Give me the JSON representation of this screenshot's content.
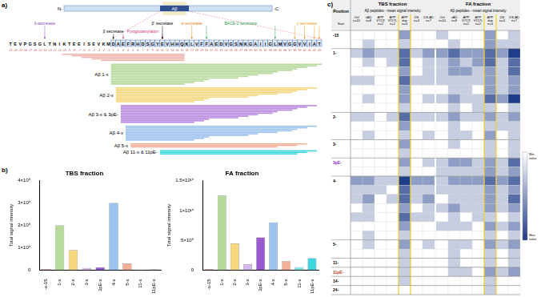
{
  "panel_labels": [
    "a)",
    "b)",
    "c)"
  ],
  "diagram": {
    "protein": {
      "n_label": "N-",
      "c_label": "-C",
      "domain_label": "Aβ"
    },
    "sequence": [
      "T",
      "E",
      "V",
      "P",
      "G",
      "S",
      "G",
      "L",
      "T",
      "N",
      "I",
      "K",
      "T",
      "E",
      "E",
      "I",
      "S",
      "E",
      "V",
      "K",
      "M",
      "D",
      "A",
      "E",
      "F",
      "R",
      "H",
      "D",
      "S",
      "G",
      "Y",
      "E",
      "V",
      "H",
      "H",
      "Q",
      "K",
      "L",
      "V",
      "F",
      "F",
      "A",
      "E",
      "D",
      "V",
      "G",
      "S",
      "N",
      "K",
      "G",
      "A",
      "I",
      "I",
      "G",
      "L",
      "M",
      "V",
      "G",
      "G",
      "V",
      "V",
      "I",
      "A",
      "T"
    ],
    "positions": [
      -21,
      -20,
      -19,
      -18,
      -17,
      -16,
      -15,
      -14,
      -13,
      -12,
      -11,
      -10,
      -9,
      -8,
      -7,
      -6,
      -5,
      -4,
      -3,
      -2,
      -1,
      1,
      2,
      3,
      4,
      5,
      6,
      7,
      8,
      9,
      10,
      11,
      12,
      13,
      14,
      15,
      16,
      17,
      18,
      19,
      20,
      21,
      22,
      23,
      24,
      25,
      26,
      27,
      28,
      29,
      30,
      31,
      32,
      33,
      34,
      35,
      36,
      37,
      38,
      39,
      40,
      41,
      42,
      43
    ],
    "annotations": [
      {
        "text": "δ-secretase",
        "color": "#8e44ad",
        "at": [
          -14
        ]
      },
      {
        "text": "β secretase",
        "color": "#000000",
        "at": [
          1
        ]
      },
      {
        "text": "Pyroglutamylation",
        "color": "#d63384",
        "at": [
          3,
          11
        ]
      },
      {
        "text": "β' secretase",
        "color": "#000000",
        "at": [
          11
        ]
      },
      {
        "text": "α-secretase",
        "color": "#e67e22",
        "at": [
          17
        ]
      },
      {
        "text": "BACE 2 secretase",
        "color": "#2e9e4f",
        "at": [
          20,
          34
        ]
      },
      {
        "text": "γ secretase",
        "color": "#e69b1e",
        "at": [
          38,
          40,
          42,
          43
        ]
      }
    ],
    "groups": [
      {
        "color": "#f4b6b0",
        "bars": [
          [
            -10,
            15
          ],
          [
            -8,
            15
          ],
          [
            -6,
            15
          ],
          [
            -4,
            15
          ],
          [
            -2,
            15
          ]
        ]
      },
      {
        "label": "Aβ 1-x",
        "color": "#b7d99c",
        "bars": [
          [
            1,
            43
          ],
          [
            1,
            42
          ],
          [
            1,
            40
          ],
          [
            1,
            38
          ],
          [
            1,
            37
          ],
          [
            1,
            34
          ],
          [
            1,
            33
          ],
          [
            1,
            30
          ],
          [
            1,
            28
          ],
          [
            1,
            26
          ],
          [
            1,
            20
          ],
          [
            1,
            19
          ],
          [
            1,
            17
          ],
          [
            1,
            15
          ]
        ]
      },
      {
        "label": "Aβ 2-x",
        "color": "#f6d77e",
        "bars": [
          [
            2,
            42
          ],
          [
            2,
            40
          ],
          [
            2,
            38
          ],
          [
            2,
            37
          ],
          [
            2,
            34
          ],
          [
            2,
            30
          ],
          [
            2,
            28
          ],
          [
            2,
            20
          ],
          [
            2,
            19
          ],
          [
            2,
            17
          ]
        ]
      },
      {
        "label": "Aβ 3-x & 3pE-",
        "color": "#b98ae0",
        "bars": [
          [
            3,
            42
          ],
          [
            3,
            40
          ],
          [
            3,
            38
          ],
          [
            3,
            37
          ],
          [
            3,
            34
          ],
          [
            3,
            33
          ],
          [
            3,
            30
          ],
          [
            3,
            28
          ],
          [
            3,
            26
          ],
          [
            3,
            20
          ],
          [
            3,
            19
          ],
          [
            3,
            17
          ]
        ]
      },
      {
        "label": "Aβ 4-x",
        "color": "#9cc2ee",
        "bars": [
          [
            4,
            42
          ],
          [
            4,
            40
          ],
          [
            4,
            38
          ],
          [
            4,
            37
          ],
          [
            4,
            34
          ],
          [
            4,
            30
          ],
          [
            4,
            28
          ],
          [
            4,
            20
          ],
          [
            4,
            19
          ],
          [
            4,
            17
          ]
        ]
      },
      {
        "label": "Aβ 5-x",
        "color": "#f3b096",
        "bars": [
          [
            5,
            40
          ],
          [
            5,
            38
          ],
          [
            5,
            34
          ]
        ]
      },
      {
        "label": "Aβ 11-x & 11pE-",
        "color": "#3dd6de",
        "bars": [
          [
            11,
            42
          ],
          [
            11,
            40
          ],
          [
            11,
            38
          ]
        ]
      }
    ]
  },
  "chart_data": [
    {
      "type": "bar",
      "title": "TBS fraction",
      "y_label": "Total signal intensity",
      "categories": [
        "-x-15",
        "1-x",
        "2-x",
        "3-x",
        "3pE-x",
        "4-x",
        "5-x",
        "11-x",
        "11pE-x"
      ],
      "values": [
        50000000,
        2000000000,
        900000000,
        100000000,
        120000000,
        3000000000,
        300000000,
        20000000,
        30000000
      ],
      "colors": [
        "#f4b6b0",
        "#b7d99c",
        "#f6d77e",
        "#d6b8ef",
        "#9b59d0",
        "#9cc2ee",
        "#f3b096",
        "#7fe3e8",
        "#3dd6de"
      ],
      "ylim": [
        0,
        4000000000
      ],
      "yticks": [
        0,
        {
          "value": 1000000000,
          "label": "1×10⁹"
        },
        {
          "value": 2000000000,
          "label": "2×10⁹"
        },
        {
          "value": 3000000000,
          "label": "3×10⁹"
        },
        {
          "value": 4000000000,
          "label": "4×10⁹"
        }
      ],
      "grid": false
    },
    {
      "type": "bar",
      "title": "FA fraction",
      "y_label": "Total signal intensity",
      "categories": [
        "-x-15",
        "1-x",
        "2-x",
        "3-x",
        "3pE-x",
        "4-x",
        "5-x",
        "11-x",
        "11pE-x"
      ],
      "values": [
        200000000,
        12500000000,
        4500000000,
        1000000000,
        5500000000,
        8000000000,
        1500000000,
        500000000,
        2000000000
      ],
      "colors": [
        "#f4b6b0",
        "#b7d99c",
        "#f6d77e",
        "#d6b8ef",
        "#9b59d0",
        "#9cc2ee",
        "#f3b096",
        "#7fe3e8",
        "#3dd6de"
      ],
      "ylim": [
        0,
        15000000000
      ],
      "yticks": [
        0,
        {
          "value": 5000000000,
          "label": "5×10⁹"
        },
        {
          "value": 10000000000,
          "label": "1×10¹⁰"
        },
        {
          "value": 15000000000,
          "label": "1.5×10¹⁰"
        }
      ],
      "grid": false
    }
  ],
  "table": {
    "position_header": "Position",
    "start_header": "Start",
    "subtitle": "Aβ peptides - mean signal intensity",
    "fractions": [
      "TBS fraction",
      "FA fraction"
    ],
    "columns": [
      "Ctrl n=10",
      "sAD n=8",
      "APP V717I n=2",
      "APP V717L n=2",
      "APP dup n=4",
      "DS n=4",
      "DS-AD n=7"
    ],
    "highlight": {
      "column": 4,
      "color": "#f2cf2e"
    },
    "color_scale": {
      "min": 0,
      "max": 4,
      "min_label": "Min. value",
      "max_label": "Max. value",
      "min_color": "#ffffff",
      "max_color": "#1f3c88"
    },
    "groups": [
      {
        "label": "-15",
        "tbs": [
          [
            0,
            0,
            0,
            0,
            2,
            0,
            0
          ],
          [
            0,
            1,
            0,
            0,
            1,
            0,
            0
          ]
        ],
        "fa": [
          [
            1,
            0,
            0,
            0,
            2,
            0,
            1
          ],
          [
            0,
            1,
            0,
            0,
            2,
            1,
            1
          ]
        ]
      },
      {
        "label": "1-",
        "tbs": [
          [
            1,
            2,
            1,
            1,
            3,
            1,
            2
          ],
          [
            0,
            1,
            0,
            1,
            3,
            0,
            1
          ],
          [
            0,
            0,
            0,
            0,
            2,
            0,
            1
          ],
          [
            1,
            1,
            0,
            0,
            3,
            1,
            1
          ],
          [
            0,
            0,
            0,
            0,
            2,
            0,
            0
          ],
          [
            0,
            1,
            0,
            0,
            2,
            0,
            1
          ],
          [
            0,
            0,
            0,
            0,
            1,
            0,
            0
          ]
        ],
        "fa": [
          [
            2,
            3,
            2,
            2,
            3,
            2,
            4
          ],
          [
            1,
            2,
            1,
            2,
            3,
            1,
            3
          ],
          [
            1,
            2,
            2,
            1,
            2,
            1,
            3
          ],
          [
            1,
            1,
            1,
            1,
            2,
            1,
            2
          ],
          [
            0,
            1,
            1,
            0,
            2,
            1,
            2
          ],
          [
            1,
            2,
            1,
            1,
            3,
            2,
            4
          ],
          [
            0,
            1,
            0,
            1,
            1,
            0,
            1
          ]
        ]
      },
      {
        "label": "2-",
        "tbs": [
          [
            1,
            1,
            0,
            1,
            3,
            1,
            1
          ],
          [
            0,
            0,
            0,
            0,
            2,
            0,
            0
          ],
          [
            0,
            1,
            0,
            0,
            1,
            0,
            1
          ]
        ],
        "fa": [
          [
            1,
            2,
            1,
            1,
            2,
            1,
            2
          ],
          [
            0,
            1,
            0,
            0,
            1,
            1,
            1
          ],
          [
            0,
            1,
            1,
            0,
            2,
            0,
            1
          ]
        ]
      },
      {
        "label": "3-",
        "tbs": [
          [
            0,
            0,
            0,
            0,
            2,
            0,
            0
          ],
          [
            0,
            0,
            0,
            0,
            1,
            0,
            0
          ]
        ],
        "fa": [
          [
            0,
            1,
            0,
            0,
            1,
            0,
            1
          ],
          [
            0,
            0,
            0,
            0,
            1,
            0,
            1
          ]
        ]
      },
      {
        "label": "3pE-",
        "color": "#8e2fbf",
        "tbs": [
          [
            0,
            0,
            0,
            0,
            2,
            0,
            1
          ],
          [
            0,
            0,
            0,
            0,
            1,
            0,
            0
          ]
        ],
        "fa": [
          [
            1,
            2,
            2,
            1,
            2,
            1,
            3
          ],
          [
            1,
            1,
            1,
            1,
            2,
            1,
            2
          ]
        ]
      },
      {
        "label": "4-",
        "tbs": [
          [
            2,
            2,
            1,
            1,
            4,
            2,
            2
          ],
          [
            1,
            1,
            1,
            0,
            3,
            1,
            1
          ],
          [
            1,
            2,
            0,
            1,
            3,
            1,
            2
          ],
          [
            0,
            1,
            0,
            0,
            2,
            0,
            1
          ],
          [
            1,
            1,
            0,
            0,
            3,
            1,
            1
          ],
          [
            0,
            0,
            0,
            0,
            2,
            0,
            0
          ],
          [
            0,
            1,
            0,
            0,
            1,
            0,
            0
          ]
        ],
        "fa": [
          [
            1,
            2,
            2,
            2,
            3,
            2,
            3
          ],
          [
            1,
            1,
            1,
            1,
            2,
            1,
            2
          ],
          [
            0,
            1,
            1,
            1,
            2,
            1,
            3
          ],
          [
            1,
            2,
            1,
            1,
            2,
            1,
            2
          ],
          [
            0,
            1,
            0,
            1,
            1,
            0,
            1
          ],
          [
            1,
            1,
            1,
            0,
            2,
            1,
            2
          ],
          [
            0,
            0,
            0,
            0,
            1,
            0,
            1
          ]
        ]
      },
      {
        "label": "5-",
        "tbs": [
          [
            0,
            1,
            0,
            0,
            2,
            0,
            1
          ],
          [
            0,
            0,
            0,
            0,
            1,
            0,
            0
          ]
        ],
        "fa": [
          [
            0,
            1,
            1,
            0,
            2,
            1,
            2
          ],
          [
            0,
            1,
            0,
            0,
            1,
            0,
            1
          ]
        ]
      },
      {
        "label": "11-",
        "tbs": [
          [
            0,
            0,
            0,
            0,
            1,
            0,
            0
          ]
        ],
        "fa": [
          [
            0,
            1,
            0,
            0,
            1,
            0,
            1
          ]
        ]
      },
      {
        "label": "11pE-",
        "color": "#c0392b",
        "tbs": [
          [
            0,
            0,
            0,
            0,
            1,
            0,
            0
          ]
        ],
        "fa": [
          [
            0,
            1,
            1,
            0,
            2,
            1,
            2
          ]
        ]
      },
      {
        "label": "14-",
        "tbs": [
          [
            0,
            0,
            0,
            0,
            1,
            0,
            0
          ]
        ],
        "fa": [
          [
            0,
            0,
            0,
            0,
            1,
            0,
            0
          ]
        ]
      },
      {
        "label": "24-",
        "tbs": [
          [
            0,
            0,
            0,
            0,
            0,
            0,
            0
          ]
        ],
        "fa": [
          [
            0,
            0,
            0,
            0,
            1,
            0,
            0
          ]
        ]
      }
    ]
  }
}
